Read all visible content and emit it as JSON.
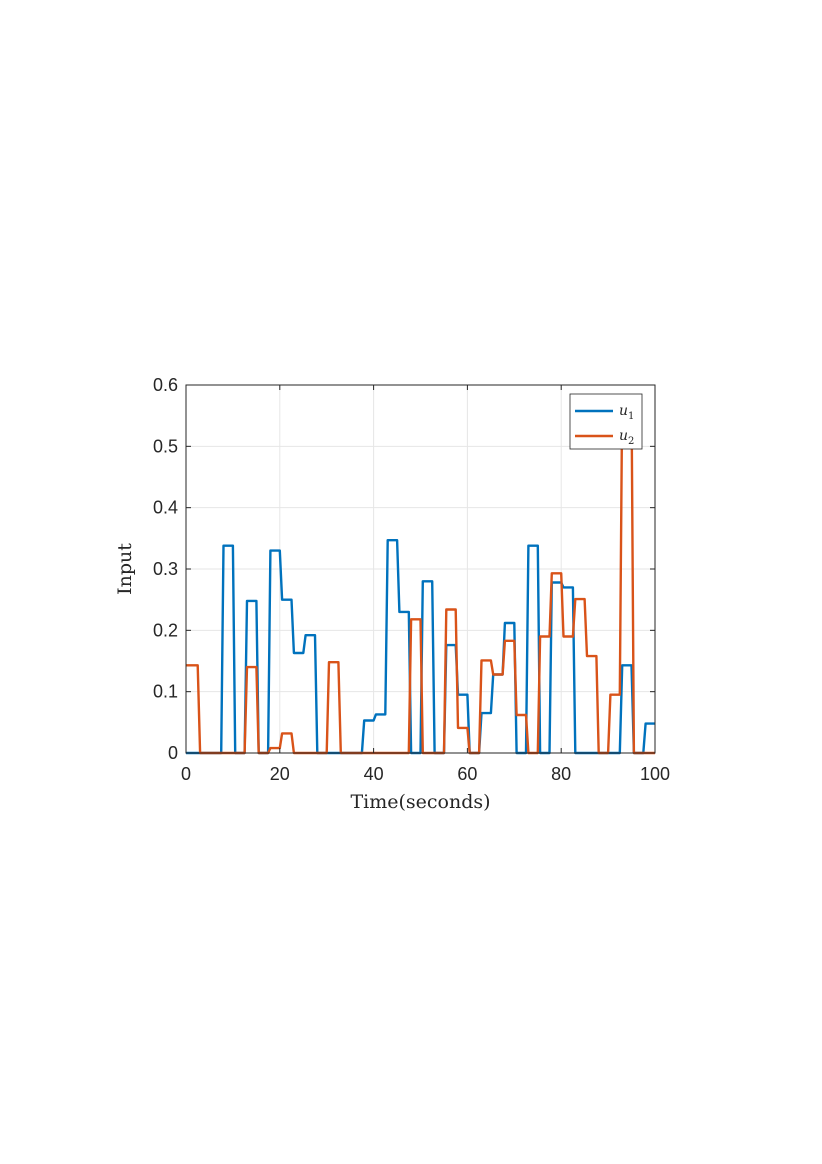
{
  "chart_data": {
    "type": "line",
    "title": "",
    "xlabel": "Time(seconds)",
    "ylabel": "Input",
    "xlim": [
      0,
      100
    ],
    "ylim": [
      0,
      0.6
    ],
    "xticks": [
      0,
      20,
      40,
      60,
      80,
      100
    ],
    "yticks": [
      0,
      0.1,
      0.2,
      0.3,
      0.4,
      0.5,
      0.6
    ],
    "xtick_labels": [
      "0",
      "20",
      "40",
      "60",
      "80",
      "100"
    ],
    "ytick_labels": [
      "0",
      "0.1",
      "0.2",
      "0.3",
      "0.4",
      "0.5",
      "0.6"
    ],
    "grid": true,
    "legend_position": "top-right",
    "series": [
      {
        "name": "u",
        "subscript": "1",
        "color": "#0072BD",
        "x": [
          0,
          7.5,
          8,
          10,
          10.5,
          12.5,
          13,
          15,
          15.5,
          17.5,
          18,
          20,
          20.5,
          22.5,
          23,
          25,
          25.5,
          27.5,
          28,
          37.5,
          38,
          40,
          40.5,
          42.5,
          43,
          45,
          45.5,
          47.5,
          48,
          50,
          50.5,
          52.5,
          53,
          55,
          55.5,
          57.5,
          58,
          60,
          60.5,
          62.5,
          63,
          65,
          65.5,
          67.5,
          68,
          70,
          70.5,
          72.5,
          73,
          75,
          75.5,
          77.5,
          78,
          80,
          80.5,
          82.5,
          83,
          92.5,
          93,
          95,
          95.5,
          97.5,
          98,
          100
        ],
        "y": [
          0,
          0,
          0.338,
          0.338,
          0,
          0,
          0.248,
          0.248,
          0,
          0,
          0.33,
          0.33,
          0.25,
          0.25,
          0.163,
          0.163,
          0.192,
          0.192,
          0,
          0,
          0.053,
          0.053,
          0.063,
          0.063,
          0.347,
          0.347,
          0.23,
          0.23,
          0,
          0,
          0.28,
          0.28,
          0,
          0,
          0.176,
          0.176,
          0.095,
          0.095,
          0,
          0,
          0.065,
          0.065,
          0.128,
          0.128,
          0.212,
          0.212,
          0,
          0,
          0.338,
          0.338,
          0,
          0,
          0.278,
          0.278,
          0.27,
          0.27,
          0,
          0,
          0.143,
          0.143,
          0,
          0,
          0.048,
          0.048
        ]
      },
      {
        "name": "u",
        "subscript": "2",
        "color": "#D95319",
        "x": [
          0,
          2.5,
          3,
          12.5,
          13,
          15,
          15.5,
          17.5,
          18,
          20,
          20.5,
          22.5,
          23,
          30,
          30.5,
          32.5,
          33,
          47.5,
          48,
          50,
          50.5,
          55,
          55.5,
          57.5,
          58,
          60,
          60.5,
          62.5,
          63,
          65,
          65.5,
          67.5,
          68,
          70,
          70.5,
          72.5,
          73,
          75,
          75.5,
          77.5,
          78,
          80,
          80.5,
          82.5,
          83,
          85,
          85.5,
          87.5,
          88,
          90,
          90.5,
          92.5,
          93,
          95,
          95.5,
          100
        ],
        "y": [
          0.143,
          0.143,
          0,
          0,
          0.14,
          0.14,
          0,
          0,
          0.008,
          0.008,
          0.032,
          0.032,
          0,
          0,
          0.148,
          0.148,
          0,
          0,
          0.218,
          0.218,
          0,
          0,
          0.234,
          0.234,
          0.041,
          0.041,
          0,
          0,
          0.151,
          0.151,
          0.128,
          0.128,
          0.183,
          0.183,
          0.062,
          0.062,
          0,
          0,
          0.19,
          0.19,
          0.293,
          0.293,
          0.19,
          0.19,
          0.251,
          0.251,
          0.158,
          0.158,
          0,
          0,
          0.095,
          0.095,
          0.582,
          0.582,
          0,
          0
        ]
      }
    ]
  }
}
